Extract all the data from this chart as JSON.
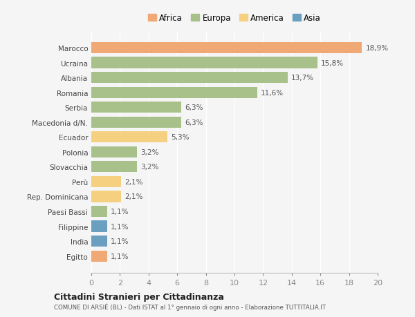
{
  "categories": [
    "Marocco",
    "Ucraina",
    "Albania",
    "Romania",
    "Serbia",
    "Macedonia d/N.",
    "Ecuador",
    "Polonia",
    "Slovacchia",
    "Perù",
    "Rep. Dominicana",
    "Paesi Bassi",
    "Filippine",
    "India",
    "Egitto"
  ],
  "values": [
    18.9,
    15.8,
    13.7,
    11.6,
    6.3,
    6.3,
    5.3,
    3.2,
    3.2,
    2.1,
    2.1,
    1.1,
    1.1,
    1.1,
    1.1
  ],
  "labels": [
    "18,9%",
    "15,8%",
    "13,7%",
    "11,6%",
    "6,3%",
    "6,3%",
    "5,3%",
    "3,2%",
    "3,2%",
    "2,1%",
    "2,1%",
    "1,1%",
    "1,1%",
    "1,1%",
    "1,1%"
  ],
  "continents": [
    "Africa",
    "Europa",
    "Europa",
    "Europa",
    "Europa",
    "Europa",
    "America",
    "Europa",
    "Europa",
    "America",
    "America",
    "Europa",
    "Asia",
    "Asia",
    "Africa"
  ],
  "colors": {
    "Africa": "#F0A875",
    "Europa": "#A8C08A",
    "America": "#F5D080",
    "Asia": "#6B9FC0"
  },
  "legend_order": [
    "Africa",
    "Europa",
    "America",
    "Asia"
  ],
  "title": "Cittadini Stranieri per Cittadinanza",
  "subtitle": "COMUNE DI ARSIÈ (BL) - Dati ISTAT al 1° gennaio di ogni anno - Elaborazione TUTTITALIA.IT",
  "xlim": [
    0,
    20
  ],
  "xticks": [
    0,
    2,
    4,
    6,
    8,
    10,
    12,
    14,
    16,
    18,
    20
  ],
  "background_color": "#f5f5f5",
  "grid_color": "#ffffff",
  "bar_height": 0.75
}
